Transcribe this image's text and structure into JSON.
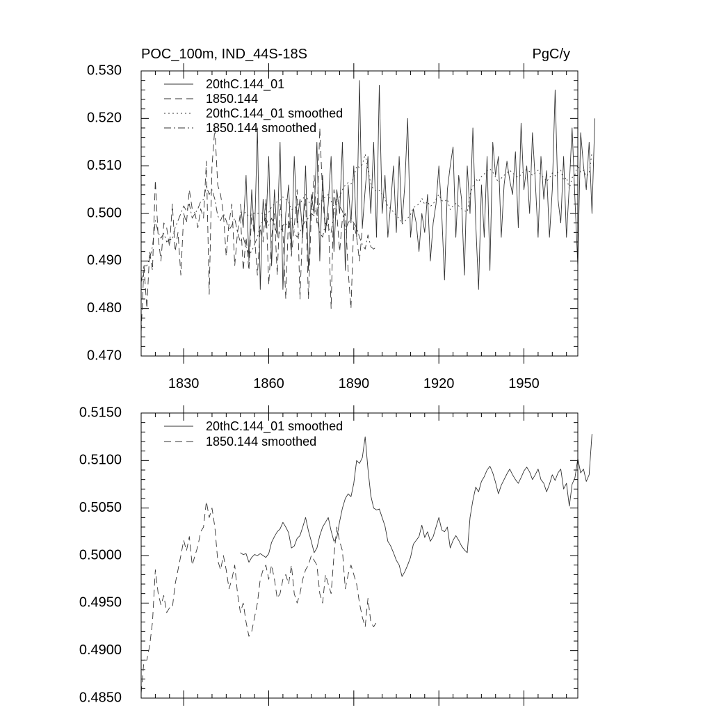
{
  "chart_data": [
    {
      "type": "line",
      "title": "POC_100m, IND_44S-18S",
      "units": "PgC/y",
      "xlim": [
        1815,
        1969
      ],
      "ylim": [
        0.47,
        0.53
      ],
      "yticks": [
        0.47,
        0.48,
        0.49,
        0.5,
        0.51,
        0.52,
        0.53
      ],
      "ytick_labels": [
        "0.470",
        "0.480",
        "0.490",
        "0.500",
        "0.510",
        "0.520",
        "0.530"
      ],
      "xticks": [
        1830,
        1860,
        1890,
        1920,
        1950
      ],
      "xtick_labels": [
        "1830",
        "1860",
        "1890",
        "1920",
        "1950"
      ],
      "legend_position": "top-left",
      "series": [
        {
          "name": "20thC.144_01",
          "style": "solid",
          "x_start": 1850,
          "x_step": 1,
          "values": [
            0.502,
            0.497,
            0.508,
            0.49,
            0.505,
            0.495,
            0.518,
            0.484,
            0.503,
            0.497,
            0.512,
            0.489,
            0.505,
            0.495,
            0.515,
            0.484,
            0.5,
            0.506,
            0.492,
            0.512,
            0.498,
            0.503,
            0.495,
            0.51,
            0.488,
            0.504,
            0.5,
            0.515,
            0.49,
            0.508,
            0.496,
            0.502,
            0.512,
            0.492,
            0.505,
            0.5,
            0.515,
            0.488,
            0.506,
            0.498,
            0.51,
            0.495,
            0.528,
            0.497,
            0.505,
            0.512,
            0.5,
            0.515,
            0.495,
            0.527,
            0.5,
            0.508,
            0.495,
            0.502,
            0.51,
            0.496,
            0.512,
            0.498,
            0.506,
            0.52,
            0.495,
            0.501,
            0.498,
            0.492,
            0.5,
            0.496,
            0.504,
            0.49,
            0.498,
            0.502,
            0.51,
            0.5,
            0.486,
            0.505,
            0.51,
            0.514,
            0.495,
            0.508,
            0.503,
            0.487,
            0.51,
            0.5,
            0.518,
            0.498,
            0.484,
            0.506,
            0.495,
            0.512,
            0.488,
            0.515,
            0.508,
            0.512,
            0.495,
            0.506,
            0.511,
            0.507,
            0.504,
            0.513,
            0.497,
            0.519,
            0.505,
            0.51,
            0.5,
            0.517,
            0.507,
            0.495,
            0.512,
            0.503,
            0.509,
            0.495,
            0.505,
            0.526,
            0.503,
            0.498,
            0.512,
            0.495,
            0.506,
            0.518,
            0.503,
            0.489,
            0.517,
            0.51,
            0.505,
            0.515,
            0.5,
            0.52
          ]
        },
        {
          "name": "1850.144",
          "style": "dashed",
          "x_start": 1815,
          "x_step": 1,
          "values": [
            0.475,
            0.489,
            0.48,
            0.492,
            0.488,
            0.507,
            0.495,
            0.49,
            0.498,
            0.497,
            0.493,
            0.502,
            0.492,
            0.496,
            0.487,
            0.5,
            0.498,
            0.505,
            0.501,
            0.5,
            0.497,
            0.501,
            0.499,
            0.511,
            0.483,
            0.51,
            0.518,
            0.506,
            0.504,
            0.5,
            0.491,
            0.498,
            0.502,
            0.489,
            0.496,
            0.5,
            0.488,
            0.495,
            0.488,
            0.5,
            0.495,
            0.487,
            0.497,
            0.494,
            0.503,
            0.485,
            0.495,
            0.5,
            0.487,
            0.502,
            0.496,
            0.482,
            0.5,
            0.491,
            0.497,
            0.505,
            0.482,
            0.498,
            0.503,
            0.482,
            0.5,
            0.508,
            0.498,
            0.518,
            0.504,
            0.496,
            0.5,
            0.48,
            0.505,
            0.5,
            0.492,
            0.499,
            0.5,
            0.488,
            0.48,
            0.498,
            0.495,
            0.49,
            0.497
          ]
        },
        {
          "name": "20thC.144_01 smoothed",
          "style": "dotted",
          "x_start": 1850,
          "x_step": 1,
          "values": [
            0.5003,
            0.5001,
            0.5002,
            0.4993,
            0.4998,
            0.5001,
            0.5,
            0.5002,
            0.5,
            0.4998,
            0.5002,
            0.5014,
            0.502,
            0.5025,
            0.5028,
            0.5035,
            0.503,
            0.5024,
            0.5008,
            0.501,
            0.5018,
            0.5021,
            0.503,
            0.504,
            0.5026,
            0.5015,
            0.5003,
            0.5008,
            0.5021,
            0.503,
            0.5035,
            0.504,
            0.5026,
            0.5015,
            0.5019,
            0.5036,
            0.505,
            0.506,
            0.5065,
            0.5062,
            0.5076,
            0.51,
            0.5097,
            0.5103,
            0.5125,
            0.5091,
            0.5063,
            0.505,
            0.5048,
            0.5049,
            0.504,
            0.5031,
            0.5015,
            0.501,
            0.5003,
            0.4995,
            0.499,
            0.4978,
            0.4983,
            0.499,
            0.4998,
            0.5012,
            0.5016,
            0.502,
            0.5032,
            0.5019,
            0.5025,
            0.5015,
            0.502,
            0.503,
            0.504,
            0.5027,
            0.5025,
            0.503,
            0.5008,
            0.5016,
            0.5021,
            0.5016,
            0.501,
            0.5006,
            0.5003,
            0.504,
            0.5058,
            0.5072,
            0.5067,
            0.5078,
            0.5083,
            0.509,
            0.5094,
            0.5087,
            0.5077,
            0.5065,
            0.5074,
            0.508,
            0.5086,
            0.5091,
            0.5085,
            0.508,
            0.5076,
            0.5082,
            0.5089,
            0.5093,
            0.5088,
            0.508,
            0.5085,
            0.5091,
            0.508,
            0.5076,
            0.5067,
            0.5075,
            0.5085,
            0.5079,
            0.5087,
            0.5091,
            0.507,
            0.5076,
            0.5052,
            0.5075,
            0.5082,
            0.5102,
            0.5087,
            0.5091,
            0.5078,
            0.5085,
            0.5128
          ]
        },
        {
          "name": "1850.144 smoothed",
          "style": "dashdot",
          "x_start": 1815,
          "x_step": 1,
          "values": [
            0.4855,
            0.489,
            0.489,
            0.4905,
            0.493,
            0.4985,
            0.496,
            0.4948,
            0.4958,
            0.494,
            0.4945,
            0.4945,
            0.497,
            0.4985,
            0.5,
            0.5016,
            0.5005,
            0.502,
            0.499,
            0.5,
            0.501,
            0.5025,
            0.503,
            0.5057,
            0.504,
            0.505,
            0.503,
            0.4995,
            0.4985,
            0.5,
            0.4985,
            0.4965,
            0.4975,
            0.499,
            0.496,
            0.494,
            0.495,
            0.493,
            0.4915,
            0.492,
            0.4935,
            0.495,
            0.4975,
            0.4985,
            0.499,
            0.4975,
            0.499,
            0.4975,
            0.4955,
            0.496,
            0.4975,
            0.498,
            0.497,
            0.499,
            0.496,
            0.495,
            0.496,
            0.4975,
            0.4985,
            0.499,
            0.5,
            0.4995,
            0.499,
            0.496,
            0.495,
            0.498,
            0.497,
            0.496,
            0.5,
            0.503,
            0.5015,
            0.5005,
            0.4965,
            0.498,
            0.499,
            0.498,
            0.497,
            0.495,
            0.4935,
            0.4925,
            0.4955,
            0.493,
            0.4925,
            0.493
          ]
        }
      ]
    },
    {
      "type": "line",
      "ylim": [
        0.485,
        0.515
      ],
      "yticks": [
        0.485,
        0.49,
        0.495,
        0.5,
        0.505,
        0.51,
        0.515
      ],
      "ytick_labels": [
        "0.4850",
        "0.4900",
        "0.4950",
        "0.5000",
        "0.5050",
        "0.5100",
        "0.5150"
      ],
      "xlim": [
        1815,
        1969
      ],
      "xticks": [
        1830,
        1860,
        1890,
        1920,
        1950
      ],
      "legend_position": "top-left",
      "series": [
        {
          "name": "20thC.144_01 smoothed",
          "style": "solid",
          "x_start": 1850,
          "x_step": 1,
          "values": [
            0.5003,
            0.5001,
            0.5002,
            0.4993,
            0.4998,
            0.5001,
            0.5,
            0.5002,
            0.5,
            0.4998,
            0.5002,
            0.5014,
            0.502,
            0.5025,
            0.5028,
            0.5035,
            0.503,
            0.5024,
            0.5008,
            0.501,
            0.5018,
            0.5021,
            0.503,
            0.504,
            0.5026,
            0.5015,
            0.5003,
            0.5008,
            0.5021,
            0.503,
            0.5035,
            0.504,
            0.5026,
            0.5015,
            0.5019,
            0.5036,
            0.505,
            0.506,
            0.5065,
            0.5062,
            0.5076,
            0.51,
            0.5097,
            0.5103,
            0.5125,
            0.5091,
            0.5063,
            0.505,
            0.5048,
            0.5049,
            0.504,
            0.5031,
            0.5015,
            0.501,
            0.5003,
            0.4995,
            0.499,
            0.4978,
            0.4983,
            0.499,
            0.4998,
            0.5012,
            0.5016,
            0.502,
            0.5032,
            0.5019,
            0.5025,
            0.5015,
            0.502,
            0.503,
            0.504,
            0.5027,
            0.5025,
            0.503,
            0.5008,
            0.5016,
            0.5021,
            0.5016,
            0.501,
            0.5006,
            0.5003,
            0.504,
            0.5058,
            0.5072,
            0.5067,
            0.5078,
            0.5083,
            0.509,
            0.5094,
            0.5087,
            0.5077,
            0.5065,
            0.5074,
            0.508,
            0.5086,
            0.5091,
            0.5085,
            0.508,
            0.5076,
            0.5082,
            0.5089,
            0.5093,
            0.5088,
            0.508,
            0.5085,
            0.5091,
            0.508,
            0.5076,
            0.5067,
            0.5075,
            0.5085,
            0.5079,
            0.5087,
            0.5091,
            0.507,
            0.5076,
            0.5052,
            0.5075,
            0.5082,
            0.5102,
            0.5087,
            0.5091,
            0.5078,
            0.5085,
            0.5128
          ]
        },
        {
          "name": "1850.144 smoothed",
          "style": "dashed",
          "x_start": 1815,
          "x_step": 1,
          "values": [
            0.4855,
            0.489,
            0.489,
            0.4905,
            0.493,
            0.4985,
            0.496,
            0.4948,
            0.4958,
            0.494,
            0.4945,
            0.4945,
            0.497,
            0.4985,
            0.5,
            0.5016,
            0.5005,
            0.502,
            0.499,
            0.5,
            0.501,
            0.5025,
            0.503,
            0.5057,
            0.504,
            0.505,
            0.503,
            0.4995,
            0.4985,
            0.5,
            0.4985,
            0.4965,
            0.4975,
            0.499,
            0.496,
            0.494,
            0.495,
            0.493,
            0.4915,
            0.492,
            0.4935,
            0.495,
            0.4975,
            0.4985,
            0.499,
            0.4975,
            0.499,
            0.4975,
            0.4955,
            0.496,
            0.4975,
            0.498,
            0.497,
            0.499,
            0.496,
            0.495,
            0.496,
            0.4975,
            0.4985,
            0.499,
            0.5,
            0.4995,
            0.499,
            0.496,
            0.495,
            0.498,
            0.497,
            0.496,
            0.5,
            0.503,
            0.5015,
            0.5005,
            0.4965,
            0.498,
            0.499,
            0.498,
            0.497,
            0.495,
            0.4935,
            0.4925,
            0.4955,
            0.493,
            0.4925,
            0.493
          ]
        }
      ]
    }
  ]
}
